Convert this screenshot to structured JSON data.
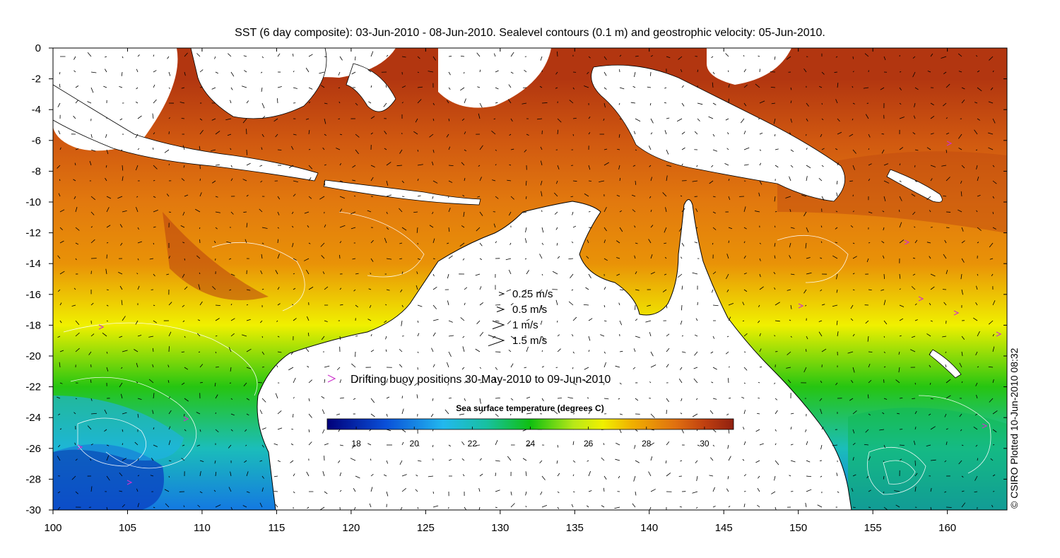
{
  "title": "SST (6 day composite): 03-Jun-2010 - 08-Jun-2010. Sealevel contours (0.1 m) and geostrophic velocity: 05-Jun-2010.",
  "credit": "© CSIRO Plotted 10-Jun-2010 08:32",
  "axes": {
    "x": {
      "min": 100,
      "max": 164,
      "ticks": [
        100,
        105,
        110,
        115,
        120,
        125,
        130,
        135,
        140,
        145,
        150,
        155,
        160
      ]
    },
    "y": {
      "min": -30,
      "max": 0,
      "ticks": [
        0,
        -2,
        -4,
        -6,
        -8,
        -10,
        -12,
        -14,
        -16,
        -18,
        -20,
        -22,
        -24,
        -26,
        -28,
        -30
      ]
    }
  },
  "velocity_legend": [
    {
      "label": "0.25 m/s",
      "speed": 0.25
    },
    {
      "label": "0.5 m/s",
      "speed": 0.5
    },
    {
      "label": "1 m/s",
      "speed": 1
    },
    {
      "label": "1.5 m/s",
      "speed": 1.5
    }
  ],
  "buoy_legend": {
    "label": "Drifting buoy positions 30-May-2010 to 09-Jun-2010",
    "color": "#cc33cc"
  },
  "colorbar": {
    "title": "Sea surface temperature (degrees C)",
    "min": 17,
    "max": 31,
    "ticks": [
      18,
      20,
      22,
      24,
      26,
      28,
      30
    ],
    "stops": [
      {
        "value": 17,
        "color": "#00007a"
      },
      {
        "value": 19,
        "color": "#0a4fd8"
      },
      {
        "value": 21,
        "color": "#22b8ee"
      },
      {
        "value": 22.5,
        "color": "#18c0a0"
      },
      {
        "value": 24,
        "color": "#10c010"
      },
      {
        "value": 25.5,
        "color": "#b8e818"
      },
      {
        "value": 26.5,
        "color": "#f0f000"
      },
      {
        "value": 27.5,
        "color": "#f0b000"
      },
      {
        "value": 29,
        "color": "#e07010"
      },
      {
        "value": 30,
        "color": "#c04010"
      },
      {
        "value": 31,
        "color": "#902010"
      }
    ]
  },
  "chart_data": {
    "type": "heatmap",
    "title": "SST (6 day composite): 03-Jun-2010 - 08-Jun-2010. Sealevel contours (0.1 m) and geostrophic velocity: 05-Jun-2010.",
    "xlim": [
      100,
      164
    ],
    "ylim": [
      -30,
      0
    ],
    "colorbar_label": "Sea surface temperature (degrees C)",
    "value_range": [
      17,
      31
    ],
    "temperature_profile": [
      {
        "lat": -2,
        "sst": 30.3
      },
      {
        "lat": -6,
        "sst": 29.5
      },
      {
        "lat": -10,
        "sst": 28.8
      },
      {
        "lat": -14,
        "sst": 28.2
      },
      {
        "lat": -18,
        "sst": 26.5
      },
      {
        "lat": -22,
        "sst": 24.2
      },
      {
        "lat": -26,
        "sst": 22.0
      },
      {
        "lat": -30,
        "sst": 19.8
      }
    ],
    "velocity_scale": [
      0.25,
      0.5,
      1,
      1.5
    ]
  }
}
